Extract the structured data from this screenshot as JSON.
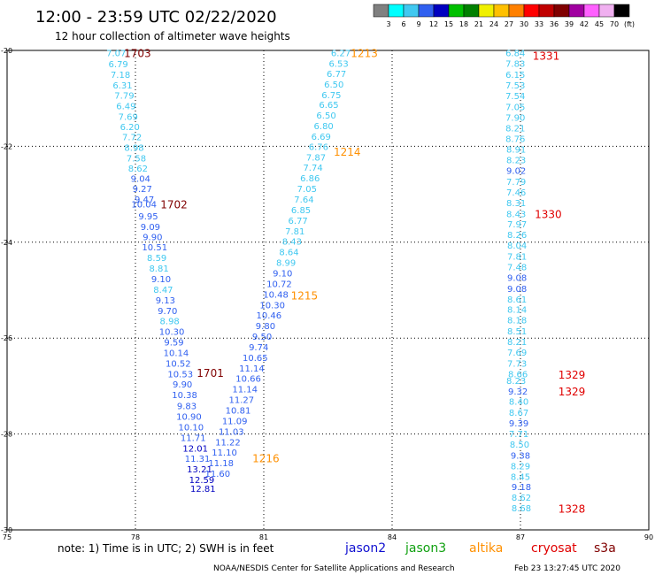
{
  "chart_data": {
    "type": "scatter",
    "title": "12:00 - 23:59 UTC 02/22/2020",
    "subtitle": "12 hour collection of altimeter wave heights",
    "xlim": [
      75,
      90
    ],
    "ylim": [
      -30,
      -20
    ],
    "x_ticks": [
      "75",
      "78",
      "81",
      "84",
      "87",
      "90"
    ],
    "y_ticks": [
      "-20",
      "-22",
      "-24",
      "-26",
      "-28",
      "-30"
    ],
    "grid": "dotted",
    "colorbar": {
      "unit": "(ft)",
      "labels": [
        "3",
        "6",
        "9",
        "12",
        "15",
        "18",
        "21",
        "24",
        "27",
        "30",
        "33",
        "36",
        "39",
        "42",
        "45",
        "70"
      ],
      "colors": [
        "#808080",
        "#00ffff",
        "#40c8f0",
        "#3060f0",
        "#0000c0",
        "#00c000",
        "#008000",
        "#f0f000",
        "#ffc000",
        "#ff8000",
        "#ff0000",
        "#c00000",
        "#800000",
        "#a000a0",
        "#ff60ff",
        "#f0b0f0",
        "#000000"
      ]
    },
    "legend": [
      {
        "name": "jason2",
        "color": "#1010d0"
      },
      {
        "name": "jason3",
        "color": "#10a010"
      },
      {
        "name": "altika",
        "color": "#ff9000"
      },
      {
        "name": "cryosat",
        "color": "#e00000"
      },
      {
        "name": "s3a",
        "color": "#800000"
      }
    ],
    "series": [
      {
        "name": "pass 1701-1703",
        "label_color": "#800000",
        "points": [
          {
            "x": 77.55,
            "y": -20.05,
            "v": "7.07"
          },
          {
            "x": 77.6,
            "y": -20.28,
            "v": "6.79"
          },
          {
            "x": 77.65,
            "y": -20.5,
            "v": "7.18"
          },
          {
            "x": 77.7,
            "y": -20.72,
            "v": "6.31"
          },
          {
            "x": 77.74,
            "y": -20.93,
            "v": "7.79"
          },
          {
            "x": 77.78,
            "y": -21.15,
            "v": "6.49"
          },
          {
            "x": 77.83,
            "y": -21.37,
            "v": "7.69"
          },
          {
            "x": 77.87,
            "y": -21.59,
            "v": "6.20"
          },
          {
            "x": 77.92,
            "y": -21.8,
            "v": "7.72"
          },
          {
            "x": 77.97,
            "y": -22.02,
            "v": "8.98"
          },
          {
            "x": 78.02,
            "y": -22.24,
            "v": "7.58"
          },
          {
            "x": 78.06,
            "y": -22.45,
            "v": "8.62"
          },
          {
            "x": 78.12,
            "y": -22.67,
            "v": "9.04"
          },
          {
            "x": 78.16,
            "y": -22.88,
            "v": "9.27"
          },
          {
            "x": 78.21,
            "y": -23.1,
            "v": "9.47"
          },
          {
            "x": 78.2,
            "y": -23.2,
            "v": "10.04"
          },
          {
            "x": 78.3,
            "y": -23.45,
            "v": "9.95"
          },
          {
            "x": 78.35,
            "y": -23.67,
            "v": "9.09"
          },
          {
            "x": 78.4,
            "y": -23.88,
            "v": "9.90"
          },
          {
            "x": 78.45,
            "y": -24.1,
            "v": "10.51"
          },
          {
            "x": 78.5,
            "y": -24.32,
            "v": "8.59"
          },
          {
            "x": 78.55,
            "y": -24.54,
            "v": "8.81"
          },
          {
            "x": 78.6,
            "y": -24.76,
            "v": "9.10"
          },
          {
            "x": 78.65,
            "y": -24.98,
            "v": "8.47"
          },
          {
            "x": 78.7,
            "y": -25.2,
            "v": "9.13"
          },
          {
            "x": 78.75,
            "y": -25.42,
            "v": "9.70"
          },
          {
            "x": 78.8,
            "y": -25.64,
            "v": "8.98"
          },
          {
            "x": 78.85,
            "y": -25.86,
            "v": "10.30"
          },
          {
            "x": 78.9,
            "y": -26.08,
            "v": "9.59"
          },
          {
            "x": 78.95,
            "y": -26.3,
            "v": "10.14"
          },
          {
            "x": 79.0,
            "y": -26.52,
            "v": "10.52"
          },
          {
            "x": 79.05,
            "y": -26.74,
            "v": "10.53"
          },
          {
            "x": 79.1,
            "y": -26.96,
            "v": "9.90"
          },
          {
            "x": 79.15,
            "y": -27.18,
            "v": "10.38"
          },
          {
            "x": 79.2,
            "y": -27.41,
            "v": "9.83"
          },
          {
            "x": 79.25,
            "y": -27.63,
            "v": "10.90"
          },
          {
            "x": 79.3,
            "y": -27.85,
            "v": "10.10"
          },
          {
            "x": 79.35,
            "y": -28.07,
            "v": "11.71"
          },
          {
            "x": 79.4,
            "y": -28.29,
            "v": "12.01"
          },
          {
            "x": 79.45,
            "y": -28.51,
            "v": "11.31"
          },
          {
            "x": 79.5,
            "y": -28.73,
            "v": "13.21"
          },
          {
            "x": 79.55,
            "y": -28.95,
            "v": "12.59"
          },
          {
            "x": 79.58,
            "y": -29.13,
            "v": "12.81"
          }
        ]
      },
      {
        "name": "pass 1213-1216",
        "label_color": "#ff9000",
        "points": [
          {
            "x": 82.8,
            "y": -20.05,
            "v": "6.27"
          },
          {
            "x": 82.75,
            "y": -20.27,
            "v": "6.53"
          },
          {
            "x": 82.7,
            "y": -20.48,
            "v": "6.77"
          },
          {
            "x": 82.64,
            "y": -20.7,
            "v": "6.50"
          },
          {
            "x": 82.58,
            "y": -20.92,
            "v": "6.75"
          },
          {
            "x": 82.52,
            "y": -21.13,
            "v": "6.65"
          },
          {
            "x": 82.46,
            "y": -21.35,
            "v": "6.50"
          },
          {
            "x": 82.4,
            "y": -21.57,
            "v": "6.80"
          },
          {
            "x": 82.34,
            "y": -21.79,
            "v": "6.69"
          },
          {
            "x": 82.28,
            "y": -22.0,
            "v": "6.76"
          },
          {
            "x": 82.22,
            "y": -22.22,
            "v": "7.87"
          },
          {
            "x": 82.15,
            "y": -22.44,
            "v": "7.74"
          },
          {
            "x": 82.08,
            "y": -22.66,
            "v": "6.86"
          },
          {
            "x": 82.01,
            "y": -22.88,
            "v": "7.05"
          },
          {
            "x": 81.94,
            "y": -23.1,
            "v": "7.64"
          },
          {
            "x": 81.87,
            "y": -23.32,
            "v": "6.85"
          },
          {
            "x": 81.8,
            "y": -23.54,
            "v": "6.77"
          },
          {
            "x": 81.73,
            "y": -23.76,
            "v": "7.81"
          },
          {
            "x": 81.66,
            "y": -23.98,
            "v": "8.43"
          },
          {
            "x": 81.59,
            "y": -24.2,
            "v": "8.64"
          },
          {
            "x": 81.52,
            "y": -24.42,
            "v": "8.99"
          },
          {
            "x": 81.44,
            "y": -24.64,
            "v": "9.10"
          },
          {
            "x": 81.36,
            "y": -24.86,
            "v": "10.72"
          },
          {
            "x": 81.28,
            "y": -25.08,
            "v": "10.48"
          },
          {
            "x": 81.2,
            "y": -25.3,
            "v": "10.30"
          },
          {
            "x": 81.12,
            "y": -25.52,
            "v": "10.46"
          },
          {
            "x": 81.04,
            "y": -25.74,
            "v": "9.80"
          },
          {
            "x": 80.96,
            "y": -25.96,
            "v": "9.50"
          },
          {
            "x": 80.88,
            "y": -26.18,
            "v": "9.74"
          },
          {
            "x": 80.8,
            "y": -26.4,
            "v": "10.65"
          },
          {
            "x": 80.72,
            "y": -26.62,
            "v": "11.14"
          },
          {
            "x": 80.64,
            "y": -26.84,
            "v": "10.66"
          },
          {
            "x": 80.56,
            "y": -27.06,
            "v": "11.14"
          },
          {
            "x": 80.48,
            "y": -27.28,
            "v": "11.27"
          },
          {
            "x": 80.4,
            "y": -27.5,
            "v": "10.81"
          },
          {
            "x": 80.32,
            "y": -27.72,
            "v": "11.09"
          },
          {
            "x": 80.24,
            "y": -27.94,
            "v": "11.03"
          },
          {
            "x": 80.16,
            "y": -28.16,
            "v": "11.22"
          },
          {
            "x": 80.08,
            "y": -28.38,
            "v": "11.10"
          },
          {
            "x": 80.0,
            "y": -28.6,
            "v": "11.18"
          },
          {
            "x": 79.92,
            "y": -28.82,
            "v": "11.60"
          }
        ]
      },
      {
        "name": "pass 1328-1331",
        "label_color": "#e00000",
        "points": [
          {
            "x": 86.88,
            "y": -20.05,
            "v": "6.84"
          },
          {
            "x": 86.88,
            "y": -20.27,
            "v": "7.83"
          },
          {
            "x": 86.88,
            "y": -20.5,
            "v": "6.15"
          },
          {
            "x": 86.88,
            "y": -20.72,
            "v": "7.53"
          },
          {
            "x": 86.88,
            "y": -20.94,
            "v": "7.54"
          },
          {
            "x": 86.88,
            "y": -21.17,
            "v": "7.05"
          },
          {
            "x": 86.88,
            "y": -21.39,
            "v": "7.90"
          },
          {
            "x": 86.88,
            "y": -21.61,
            "v": "8.21"
          },
          {
            "x": 86.88,
            "y": -21.84,
            "v": "8.76"
          },
          {
            "x": 86.9,
            "y": -22.06,
            "v": "8.91"
          },
          {
            "x": 86.9,
            "y": -22.28,
            "v": "8.23"
          },
          {
            "x": 86.9,
            "y": -22.5,
            "v": "9.02"
          },
          {
            "x": 86.9,
            "y": -22.73,
            "v": "7.79"
          },
          {
            "x": 86.9,
            "y": -22.95,
            "v": "7.46"
          },
          {
            "x": 86.9,
            "y": -23.17,
            "v": "8.31"
          },
          {
            "x": 86.9,
            "y": -23.4,
            "v": "8.43"
          },
          {
            "x": 86.92,
            "y": -23.62,
            "v": "7.97"
          },
          {
            "x": 86.92,
            "y": -23.84,
            "v": "8.26"
          },
          {
            "x": 86.92,
            "y": -24.06,
            "v": "8.04"
          },
          {
            "x": 86.92,
            "y": -24.29,
            "v": "7.81"
          },
          {
            "x": 86.92,
            "y": -24.51,
            "v": "7.48"
          },
          {
            "x": 86.92,
            "y": -24.73,
            "v": "9.08"
          },
          {
            "x": 86.92,
            "y": -24.96,
            "v": "9.08"
          },
          {
            "x": 86.92,
            "y": -25.18,
            "v": "8.61"
          },
          {
            "x": 86.92,
            "y": -25.4,
            "v": "8.14"
          },
          {
            "x": 86.92,
            "y": -25.62,
            "v": "8.18"
          },
          {
            "x": 86.92,
            "y": -25.85,
            "v": "8.51"
          },
          {
            "x": 86.92,
            "y": -26.07,
            "v": "8.21"
          },
          {
            "x": 86.92,
            "y": -26.29,
            "v": "7.69"
          },
          {
            "x": 86.92,
            "y": -26.52,
            "v": "7.73"
          },
          {
            "x": 86.94,
            "y": -26.74,
            "v": "8.66"
          },
          {
            "x": 86.9,
            "y": -26.88,
            "v": "8.23"
          },
          {
            "x": 86.94,
            "y": -27.1,
            "v": "9.32"
          },
          {
            "x": 86.96,
            "y": -27.32,
            "v": "8.40"
          },
          {
            "x": 86.96,
            "y": -27.55,
            "v": "8.67"
          },
          {
            "x": 86.96,
            "y": -27.77,
            "v": "9.39"
          },
          {
            "x": 86.96,
            "y": -27.99,
            "v": "7.71"
          },
          {
            "x": 86.98,
            "y": -28.21,
            "v": "8.50"
          },
          {
            "x": 87.0,
            "y": -28.44,
            "v": "9.38"
          },
          {
            "x": 87.0,
            "y": -28.66,
            "v": "8.29"
          },
          {
            "x": 87.0,
            "y": -28.88,
            "v": "8.45"
          },
          {
            "x": 87.02,
            "y": -29.1,
            "v": "9.18"
          },
          {
            "x": 87.02,
            "y": -29.32,
            "v": "8.62"
          },
          {
            "x": 87.02,
            "y": -29.54,
            "v": "8.68"
          }
        ]
      }
    ],
    "pass_labels": [
      {
        "x": 78.05,
        "y": -20.05,
        "v": "1703",
        "color": "#800000"
      },
      {
        "x": 78.9,
        "y": -23.2,
        "v": "1702",
        "color": "#800000"
      },
      {
        "x": 79.75,
        "y": -26.72,
        "v": "1701",
        "color": "#800000"
      },
      {
        "x": 83.35,
        "y": -20.05,
        "v": "1213",
        "color": "#ff9000"
      },
      {
        "x": 82.95,
        "y": -22.1,
        "v": "1214",
        "color": "#ff9000"
      },
      {
        "x": 81.95,
        "y": -25.1,
        "v": "1215",
        "color": "#ff9000"
      },
      {
        "x": 81.05,
        "y": -28.5,
        "v": "1216",
        "color": "#ff9000"
      },
      {
        "x": 87.6,
        "y": -20.1,
        "v": "1331",
        "color": "#e00000"
      },
      {
        "x": 87.65,
        "y": -23.4,
        "v": "1330",
        "color": "#e00000"
      },
      {
        "x": 88.2,
        "y": -26.75,
        "v": "1329",
        "color": "#e00000"
      },
      {
        "x": 88.2,
        "y": -27.1,
        "v": "1329",
        "color": "#e00000"
      },
      {
        "x": 88.2,
        "y": -29.55,
        "v": "1328",
        "color": "#e00000"
      }
    ]
  },
  "note": "note: 1) Time is in UTC; 2) SWH is in feet",
  "footer_left": "NOAA/NESDIS Center for Satellite Applications and Research",
  "footer_right": "Feb 23 13:27:45 UTC 2020"
}
